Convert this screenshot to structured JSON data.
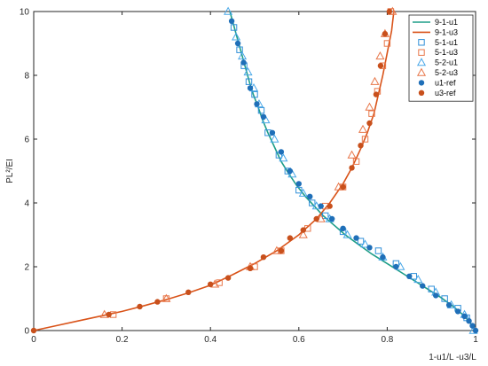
{
  "chart_data": {
    "type": "line",
    "title": "",
    "xlabel": "1-u1/L  -u3/L",
    "ylabel": "PL²/EI",
    "xlim": [
      0,
      1
    ],
    "ylim": [
      0,
      10
    ],
    "xticks": [
      "0",
      "0.2",
      "0.4",
      "0.6",
      "0.8",
      "1"
    ],
    "yticks": [
      "0",
      "2",
      "4",
      "6",
      "8",
      "10"
    ],
    "grid": false,
    "legend_position": "top-right",
    "series": [
      {
        "name": "9-1-u1",
        "style": "line",
        "color": "#1f9e89",
        "x": [
          0.444,
          0.456,
          0.468,
          0.478,
          0.488,
          0.497,
          0.508,
          0.518,
          0.53,
          0.545,
          0.56,
          0.578,
          0.595,
          0.615,
          0.635,
          0.655,
          0.68,
          0.705,
          0.735,
          0.765,
          0.8,
          0.84,
          0.88,
          0.92,
          0.95,
          0.975,
          0.99,
          1.0
        ],
        "y": [
          10,
          9.4,
          8.8,
          8.3,
          7.8,
          7.4,
          7.0,
          6.6,
          6.2,
          5.75,
          5.3,
          4.9,
          4.55,
          4.2,
          3.9,
          3.6,
          3.3,
          3.0,
          2.7,
          2.4,
          2.1,
          1.75,
          1.4,
          1.05,
          0.75,
          0.45,
          0.2,
          0
        ]
      },
      {
        "name": "9-1-u3",
        "style": "line",
        "color": "#d95319",
        "x": [
          0,
          0.05,
          0.1,
          0.15,
          0.2,
          0.25,
          0.3,
          0.35,
          0.4,
          0.45,
          0.5,
          0.55,
          0.6,
          0.64,
          0.67,
          0.7,
          0.72,
          0.74,
          0.755,
          0.77,
          0.78,
          0.79,
          0.8,
          0.81,
          0.815
        ],
        "y": [
          0,
          0.15,
          0.3,
          0.45,
          0.6,
          0.78,
          0.97,
          1.18,
          1.42,
          1.75,
          2.1,
          2.5,
          3.0,
          3.5,
          4.0,
          4.6,
          5.1,
          5.7,
          6.2,
          6.8,
          7.4,
          8.0,
          8.7,
          9.4,
          10
        ]
      },
      {
        "name": "5-1-u1",
        "style": "marker",
        "marker": "square",
        "color": "#2f8fd8",
        "x": [
          0.453,
          0.466,
          0.476,
          0.487,
          0.5,
          0.515,
          0.53,
          0.555,
          0.575,
          0.6,
          0.63,
          0.66,
          0.7,
          0.74,
          0.78,
          0.82,
          0.86,
          0.9,
          0.93,
          0.96,
          0.98
        ],
        "y": [
          9.5,
          8.8,
          8.3,
          7.8,
          7.4,
          6.9,
          6.2,
          5.5,
          5.0,
          4.4,
          4.0,
          3.6,
          3.1,
          2.8,
          2.5,
          2.1,
          1.7,
          1.3,
          1.0,
          0.7,
          0.4
        ]
      },
      {
        "name": "5-1-u3",
        "style": "marker",
        "marker": "square",
        "color": "#e8774a",
        "x": [
          0.18,
          0.3,
          0.42,
          0.5,
          0.56,
          0.62,
          0.66,
          0.7,
          0.73,
          0.75,
          0.765,
          0.778,
          0.79,
          0.8,
          0.808
        ],
        "y": [
          0.5,
          1.0,
          1.5,
          2.0,
          2.5,
          3.2,
          3.9,
          4.5,
          5.3,
          6.0,
          6.8,
          7.5,
          8.3,
          9.0,
          10.0
        ]
      },
      {
        "name": "5-2-u1",
        "style": "marker",
        "marker": "triangle",
        "color": "#4aa8e8",
        "x": [
          0.44,
          0.458,
          0.472,
          0.485,
          0.498,
          0.51,
          0.525,
          0.545,
          0.565,
          0.585,
          0.61,
          0.64,
          0.67,
          0.71,
          0.75,
          0.79,
          0.83,
          0.87,
          0.91,
          0.945,
          0.975,
          0.995
        ],
        "y": [
          10.0,
          9.2,
          8.6,
          8.1,
          7.6,
          7.1,
          6.6,
          6.0,
          5.4,
          4.9,
          4.3,
          3.9,
          3.5,
          3.0,
          2.7,
          2.3,
          2.0,
          1.6,
          1.2,
          0.8,
          0.5,
          0.0
        ]
      },
      {
        "name": "5-2-u3",
        "style": "marker",
        "marker": "triangle",
        "color": "#e8774a",
        "x": [
          0.16,
          0.3,
          0.41,
          0.49,
          0.55,
          0.61,
          0.65,
          0.69,
          0.72,
          0.745,
          0.76,
          0.772,
          0.784,
          0.795,
          0.812
        ],
        "y": [
          0.5,
          1.0,
          1.45,
          2.0,
          2.5,
          3.0,
          3.5,
          4.5,
          5.5,
          6.3,
          7.0,
          7.8,
          8.6,
          9.3,
          10.0
        ]
      },
      {
        "name": "u1-ref",
        "style": "marker",
        "marker": "circle",
        "color": "#1f6fb8",
        "x": [
          0.448,
          0.462,
          0.475,
          0.49,
          0.505,
          0.52,
          0.54,
          0.56,
          0.58,
          0.6,
          0.625,
          0.65,
          0.675,
          0.7,
          0.73,
          0.76,
          0.79,
          0.82,
          0.85,
          0.88,
          0.91,
          0.94,
          0.96,
          0.975,
          0.985,
          0.993,
          1.0
        ],
        "y": [
          9.7,
          9.0,
          8.4,
          7.6,
          7.1,
          6.7,
          6.2,
          5.6,
          5.0,
          4.6,
          4.2,
          3.9,
          3.5,
          3.2,
          2.9,
          2.6,
          2.3,
          2.0,
          1.7,
          1.4,
          1.1,
          0.8,
          0.6,
          0.45,
          0.3,
          0.15,
          0.0
        ]
      },
      {
        "name": "u3-ref",
        "style": "marker",
        "marker": "circle",
        "color": "#c8501c",
        "x": [
          0.0,
          0.17,
          0.24,
          0.28,
          0.35,
          0.4,
          0.44,
          0.49,
          0.52,
          0.56,
          0.58,
          0.61,
          0.64,
          0.67,
          0.7,
          0.72,
          0.74,
          0.76,
          0.775,
          0.785,
          0.795,
          0.805
        ],
        "y": [
          0.0,
          0.5,
          0.75,
          0.9,
          1.2,
          1.45,
          1.65,
          1.95,
          2.3,
          2.5,
          2.9,
          3.15,
          3.5,
          3.9,
          4.5,
          5.1,
          5.8,
          6.5,
          7.4,
          8.3,
          9.3,
          10.0
        ]
      }
    ]
  }
}
